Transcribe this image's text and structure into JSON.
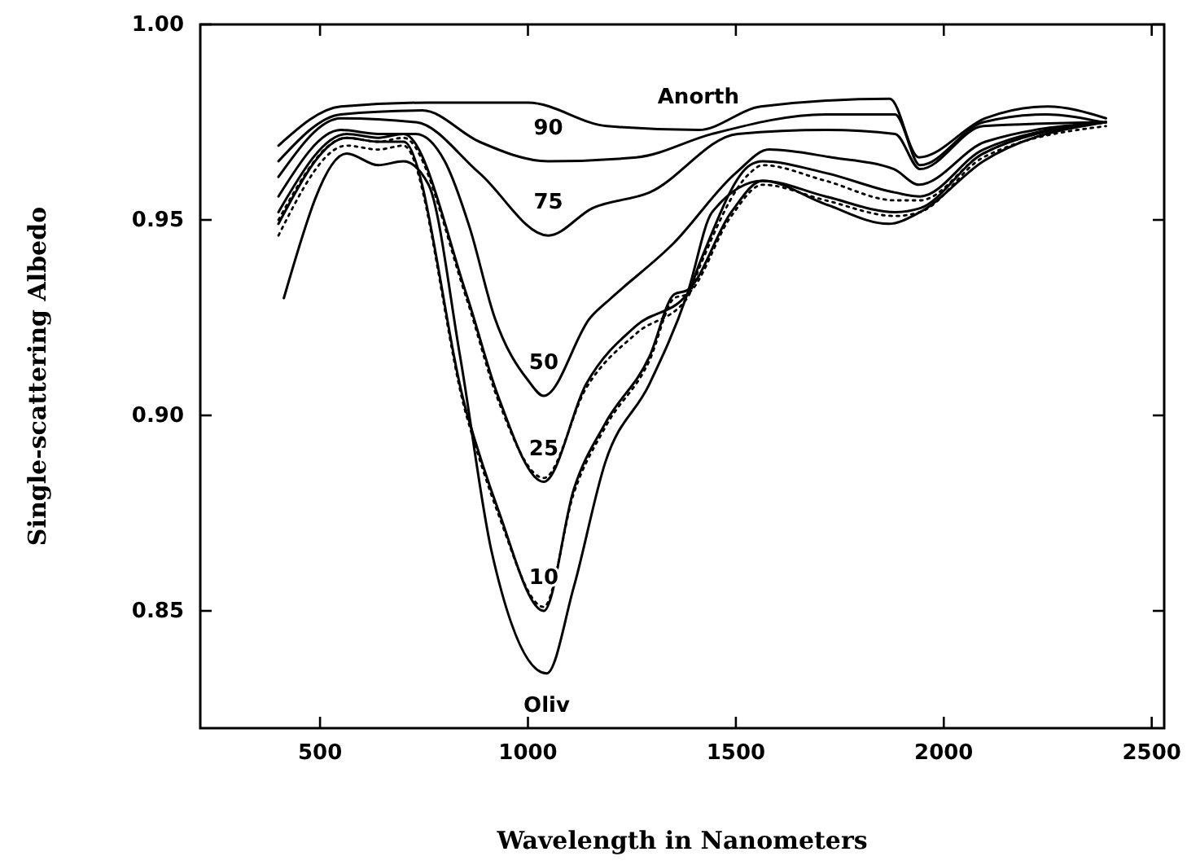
{
  "chart_data": {
    "type": "line",
    "xlabel": "Wavelength in Nanometers",
    "ylabel": "Single-scattering Albedo",
    "xlim": [
      212,
      2530
    ],
    "ylim": [
      0.82,
      1.0
    ],
    "xticks": [
      500,
      1000,
      1500,
      2000,
      2500
    ],
    "yticks": [
      {
        "value": 1.0,
        "label": "1.00"
      },
      {
        "value": 0.95,
        "label": "0.95"
      },
      {
        "value": 0.9,
        "label": "0.90"
      },
      {
        "value": 0.85,
        "label": "0.85"
      }
    ],
    "grid": false,
    "marker": "none",
    "line_style": "solid",
    "series": [
      {
        "color": "#000000",
        "x": [
          400,
          550,
          760,
          1000,
          1190,
          1410,
          1560,
          1870,
          1940,
          2100,
          2250,
          2390
        ],
        "values": [
          0.969,
          0.979,
          0.98,
          0.98,
          0.974,
          0.973,
          0.979,
          0.981,
          0.966,
          0.976,
          0.979,
          0.976
        ]
      },
      {
        "color": "#000000",
        "x": [
          400,
          550,
          746,
          883,
          1049,
          1261,
          1443,
          1716,
          1883,
          1943,
          2095,
          2246,
          2382
        ],
        "values": [
          0.965,
          0.977,
          0.978,
          0.97,
          0.965,
          0.966,
          0.972,
          0.977,
          0.977,
          0.964,
          0.975,
          0.977,
          0.975
        ]
      },
      {
        "color": "#000000",
        "x": [
          400,
          550,
          731,
          883,
          1049,
          1155,
          1292,
          1504,
          1716,
          1883,
          1943,
          2095,
          2382
        ],
        "values": [
          0.961,
          0.976,
          0.975,
          0.962,
          0.946,
          0.953,
          0.957,
          0.972,
          0.973,
          0.972,
          0.963,
          0.974,
          0.975
        ]
      },
      {
        "color": "#000000",
        "x": [
          400,
          550,
          640,
          730,
          800,
          860,
          920,
          1000,
          1038,
          1150,
          1200,
          1350,
          1500,
          1580,
          1730,
          1880,
          1940,
          2100,
          2390
        ],
        "values": [
          0.956,
          0.973,
          0.972,
          0.972,
          0.965,
          0.948,
          0.925,
          0.909,
          0.905,
          0.925,
          0.93,
          0.944,
          0.962,
          0.968,
          0.966,
          0.963,
          0.959,
          0.97,
          0.975
        ]
      },
      {
        "color": "#000000",
        "x": [
          400,
          564,
          640,
          701,
          852,
          928,
          1038,
          1140,
          1261,
          1383,
          1413,
          1534,
          1564,
          1716,
          1883,
          1943,
          2095,
          2390
        ],
        "values": [
          0.952,
          0.972,
          0.971,
          0.972,
          0.931,
          0.905,
          0.883,
          0.908,
          0.923,
          0.931,
          0.939,
          0.964,
          0.965,
          0.962,
          0.957,
          0.956,
          0.968,
          0.975
        ]
      },
      {
        "color": "#000000",
        "x": [
          400,
          564,
          640,
          701,
          852,
          928,
          1038,
          1110,
          1186,
          1292,
          1352,
          1383,
          1489,
          1564,
          1716,
          1883,
          1943,
          2095,
          2390
        ],
        "values": [
          0.949,
          0.971,
          0.97,
          0.97,
          0.901,
          0.876,
          0.85,
          0.881,
          0.898,
          0.915,
          0.931,
          0.932,
          0.952,
          0.96,
          0.956,
          0.952,
          0.953,
          0.967,
          0.975
        ]
      },
      {
        "color": "#000000",
        "x": [
          413,
          564,
          640,
          701,
          761,
          837,
          913,
          1045,
          1110,
          1186,
          1292,
          1383,
          1443,
          1564,
          1716,
          1867,
          1943,
          2095,
          2390
        ],
        "values": [
          0.93,
          0.967,
          0.964,
          0.965,
          0.959,
          0.915,
          0.865,
          0.834,
          0.856,
          0.888,
          0.908,
          0.931,
          0.952,
          0.96,
          0.954,
          0.949,
          0.952,
          0.965,
          0.975
        ]
      },
      {
        "color": "#000000",
        "line_style": "dotted",
        "x": [
          400,
          564,
          640,
          701,
          852,
          928,
          1038,
          1140,
          1261,
          1383,
          1413,
          1534,
          1564,
          1716,
          1883,
          1943,
          2095,
          2390
        ],
        "values": [
          0.95,
          0.971,
          0.97,
          0.971,
          0.93,
          0.904,
          0.884,
          0.907,
          0.921,
          0.93,
          0.938,
          0.962,
          0.964,
          0.96,
          0.955,
          0.955,
          0.967,
          0.975
        ]
      },
      {
        "color": "#000000",
        "line_style": "dotted",
        "x": [
          400,
          564,
          640,
          701,
          852,
          928,
          1038,
          1110,
          1186,
          1292,
          1352,
          1383,
          1489,
          1564,
          1716,
          1883,
          1943,
          2095,
          2390
        ],
        "values": [
          0.946,
          0.969,
          0.968,
          0.969,
          0.9,
          0.875,
          0.851,
          0.88,
          0.897,
          0.914,
          0.93,
          0.931,
          0.951,
          0.959,
          0.955,
          0.951,
          0.952,
          0.966,
          0.974
        ]
      }
    ],
    "annotations": [
      {
        "text": "Anorth",
        "x": 1410,
        "y": 0.973
      },
      {
        "text": "90",
        "x": 1049,
        "y": 0.965
      },
      {
        "text": "75",
        "x": 1049,
        "y": 0.946
      },
      {
        "text": "50",
        "x": 1038,
        "y": 0.905
      },
      {
        "text": "25",
        "x": 1038,
        "y": 0.883
      },
      {
        "text": "10",
        "x": 1038,
        "y": 0.85
      },
      {
        "text": "Oliv",
        "x": 1045,
        "y": 0.834
      }
    ]
  }
}
